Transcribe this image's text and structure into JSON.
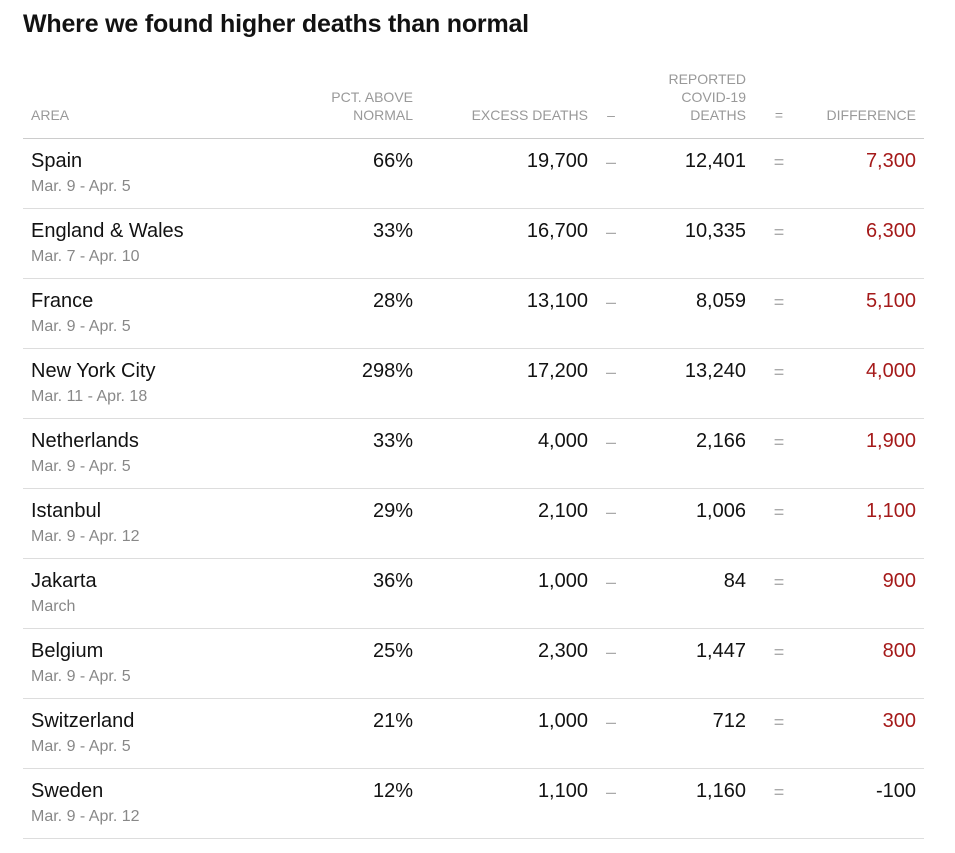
{
  "title": "Where we found higher deaths than normal",
  "chart_data": {
    "type": "table",
    "title": "Where we found higher deaths than normal",
    "columns": {
      "area": "AREA",
      "pct_line1": "PCT. ABOVE",
      "pct_line2": "NORMAL",
      "excess": "EXCESS DEATHS",
      "minus": "–",
      "reported_line1": "REPORTED",
      "reported_line2": "COVID-19",
      "reported_line3": "DEATHS",
      "equals": "=",
      "difference": "DIFFERENCE"
    },
    "operators": {
      "minus": "–",
      "equals": "="
    },
    "rows": [
      {
        "area": "Spain",
        "dates": "Mar. 9 - Apr. 5",
        "pct_above_normal": "66%",
        "excess_deaths": "19,700",
        "reported_covid_deaths": "12,401",
        "difference": "7,300"
      },
      {
        "area": "England & Wales",
        "dates": "Mar. 7 - Apr. 10",
        "pct_above_normal": "33%",
        "excess_deaths": "16,700",
        "reported_covid_deaths": "10,335",
        "difference": "6,300"
      },
      {
        "area": "France",
        "dates": "Mar. 9 - Apr. 5",
        "pct_above_normal": "28%",
        "excess_deaths": "13,100",
        "reported_covid_deaths": "8,059",
        "difference": "5,100"
      },
      {
        "area": "New York City",
        "dates": "Mar. 11 - Apr. 18",
        "pct_above_normal": "298%",
        "excess_deaths": "17,200",
        "reported_covid_deaths": "13,240",
        "difference": "4,000"
      },
      {
        "area": "Netherlands",
        "dates": "Mar. 9 - Apr. 5",
        "pct_above_normal": "33%",
        "excess_deaths": "4,000",
        "reported_covid_deaths": "2,166",
        "difference": "1,900"
      },
      {
        "area": "Istanbul",
        "dates": "Mar. 9 - Apr. 12",
        "pct_above_normal": "29%",
        "excess_deaths": "2,100",
        "reported_covid_deaths": "1,006",
        "difference": "1,100"
      },
      {
        "area": "Jakarta",
        "dates": "March",
        "pct_above_normal": "36%",
        "excess_deaths": "1,000",
        "reported_covid_deaths": "84",
        "difference": "900"
      },
      {
        "area": "Belgium",
        "dates": "Mar. 9 - Apr. 5",
        "pct_above_normal": "25%",
        "excess_deaths": "2,300",
        "reported_covid_deaths": "1,447",
        "difference": "800"
      },
      {
        "area": "Switzerland",
        "dates": "Mar. 9 - Apr. 5",
        "pct_above_normal": "21%",
        "excess_deaths": "1,000",
        "reported_covid_deaths": "712",
        "difference": "300"
      },
      {
        "area": "Sweden",
        "dates": "Mar. 9 - Apr. 12",
        "pct_above_normal": "12%",
        "excess_deaths": "1,100",
        "reported_covid_deaths": "1,160",
        "difference": "-100"
      }
    ]
  },
  "colors": {
    "positive_difference": "#a51a1a",
    "negative_difference": "#121212",
    "header_text": "#999999",
    "date_text": "#888888"
  }
}
